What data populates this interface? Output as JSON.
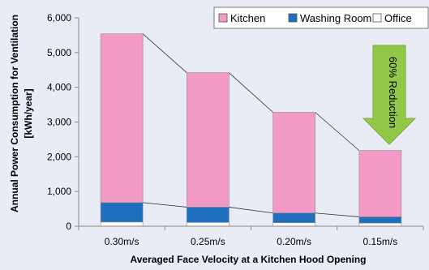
{
  "chart_data": {
    "type": "bar",
    "stacked": true,
    "categories": [
      "0.30m/s",
      "0.25m/s",
      "0.20m/s",
      "0.15m/s"
    ],
    "series": [
      {
        "name": "Office",
        "color": "#ffffff",
        "values": [
          120,
          110,
          100,
          90
        ]
      },
      {
        "name": "Washing Room",
        "color": "#1f6fbf",
        "values": [
          560,
          440,
          280,
          180
        ]
      },
      {
        "name": "Kitchen",
        "color": "#f39ac7",
        "values": [
          4860,
          3870,
          2900,
          1910
        ]
      }
    ],
    "legend_order": [
      "Kitchen",
      "Washing Room",
      "Office"
    ],
    "legend_position": "top-right",
    "xlabel": "Averaged  Face Velocity at a Kitchen Hood Opening",
    "ylabel_lines": [
      "Annual Power Consumption for Ventilation",
      "[kWh/year]"
    ],
    "ylim": [
      0,
      6000
    ],
    "yticks": [
      0,
      1000,
      2000,
      3000,
      4000,
      5000,
      6000
    ],
    "ytick_labels": [
      "0",
      "1,000",
      "2,000",
      "3,000",
      "4,000",
      "5,000",
      "6,000"
    ],
    "grid": false,
    "annotation": {
      "text": "60% Reduction",
      "color": "#92c747",
      "shape": "down-arrow"
    }
  }
}
